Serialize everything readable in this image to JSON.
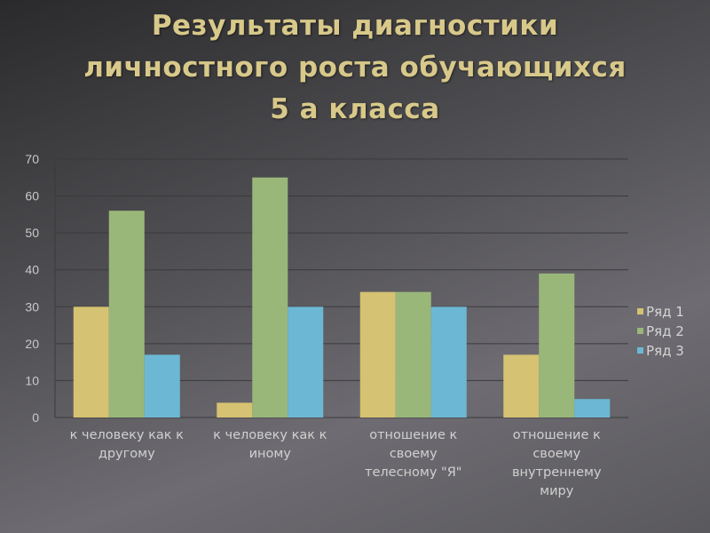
{
  "title_lines": [
    "Результаты диагностики",
    "личностного роста обучающихся",
    "5 а класса"
  ],
  "chart_data": {
    "type": "bar",
    "categories": [
      [
        "к человеку как к",
        "другому"
      ],
      [
        "к человеку как к",
        "иному"
      ],
      [
        "отношение к",
        "своему",
        "телесному \"Я\""
      ],
      [
        "отношение к",
        "своему",
        "внутреннему",
        "миру"
      ]
    ],
    "series": [
      {
        "name": "Ряд 1",
        "color": "#d5c272",
        "values": [
          30,
          4,
          34,
          17
        ]
      },
      {
        "name": "Ряд 2",
        "color": "#9ab77a",
        "values": [
          56,
          65,
          34,
          39
        ]
      },
      {
        "name": "Ряд 3",
        "color": "#6cb8d4",
        "values": [
          17,
          30,
          30,
          5
        ]
      }
    ],
    "ylim": [
      0,
      70
    ],
    "yticks": [
      0,
      10,
      20,
      30,
      40,
      50,
      60,
      70
    ],
    "grid": true,
    "legend": "right"
  }
}
